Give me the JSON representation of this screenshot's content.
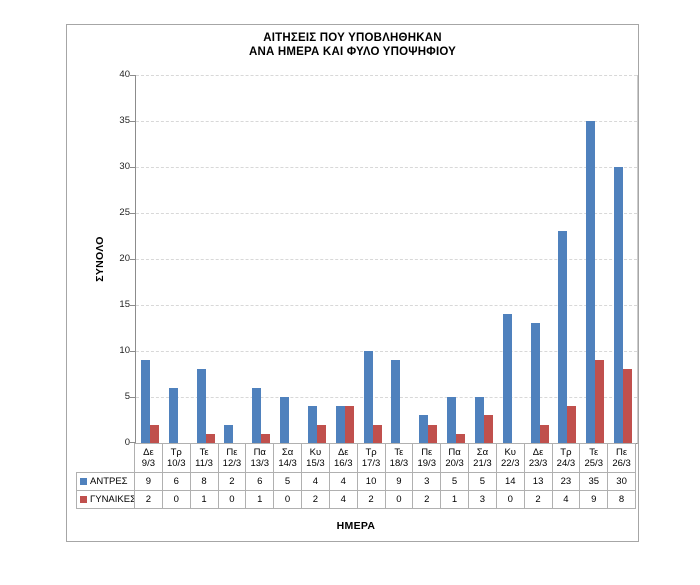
{
  "chart_data": {
    "type": "bar",
    "title_lines": [
      "ΑΙΤΗΣΕΙΣ ΠΟΥ ΥΠΟΒΛΗΘΗΚΑΝ",
      "ΑΝΑ ΗΜΕΡΑ ΚΑΙ ΦΥΛΟ ΥΠΟΨΗΦΙΟΥ"
    ],
    "ylabel": "ΣΥΝΟΛΟ",
    "xlabel": "ΗΜΕΡΑ",
    "ylim": [
      0,
      40
    ],
    "yticks": [
      0,
      5,
      10,
      15,
      20,
      25,
      30,
      35,
      40
    ],
    "grid": "horizontal-dashed",
    "legend_position": "data-table-left-column",
    "categories": [
      {
        "day": "Δε",
        "date": "9/3"
      },
      {
        "day": "Τρ",
        "date": "10/3"
      },
      {
        "day": "Τε",
        "date": "11/3"
      },
      {
        "day": "Πε",
        "date": "12/3"
      },
      {
        "day": "Πα",
        "date": "13/3"
      },
      {
        "day": "Σα",
        "date": "14/3"
      },
      {
        "day": "Κυ",
        "date": "15/3"
      },
      {
        "day": "Δε",
        "date": "16/3"
      },
      {
        "day": "Τρ",
        "date": "17/3"
      },
      {
        "day": "Τε",
        "date": "18/3"
      },
      {
        "day": "Πε",
        "date": "19/3"
      },
      {
        "day": "Πα",
        "date": "20/3"
      },
      {
        "day": "Σα",
        "date": "21/3"
      },
      {
        "day": "Κυ",
        "date": "22/3"
      },
      {
        "day": "Δε",
        "date": "23/3"
      },
      {
        "day": "Τρ",
        "date": "24/3"
      },
      {
        "day": "Τε",
        "date": "25/3"
      },
      {
        "day": "Πε",
        "date": "26/3"
      }
    ],
    "series": [
      {
        "name": "ΑΝΤΡΕΣ",
        "color": "#4F81BD",
        "values": [
          9,
          6,
          8,
          2,
          6,
          5,
          4,
          4,
          10,
          9,
          3,
          5,
          5,
          14,
          13,
          23,
          35,
          30
        ]
      },
      {
        "name": "ΓΥΝΑΙΚΕΣ",
        "color": "#C0504D",
        "values": [
          2,
          0,
          1,
          0,
          1,
          0,
          2,
          4,
          2,
          0,
          2,
          1,
          3,
          0,
          2,
          4,
          9,
          8
        ]
      }
    ],
    "colors": {
      "grid": "#d8d8d8",
      "axis": "#8c8c8c",
      "table_border": "#b0b0b0",
      "frame_border": "#a6a6a6"
    }
  }
}
